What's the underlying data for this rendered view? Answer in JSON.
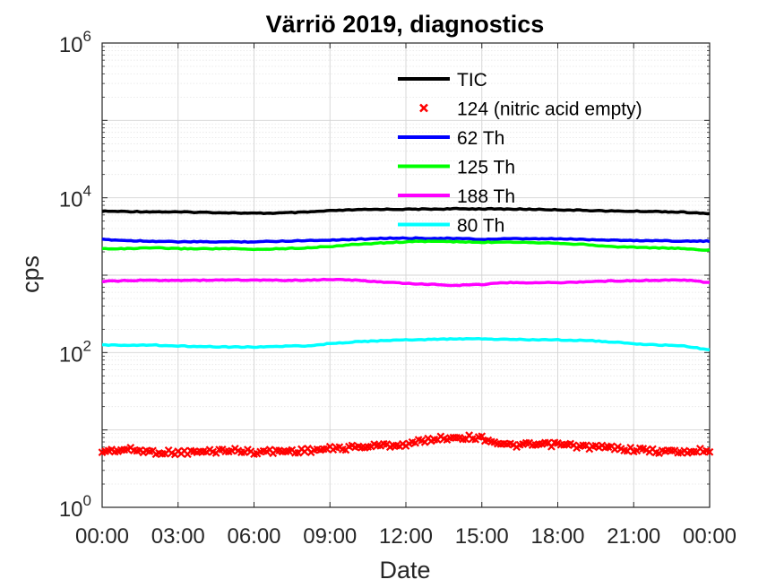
{
  "chart_data": {
    "type": "line",
    "title": "Värriö 2019, diagnostics",
    "xlabel": "Date",
    "ylabel": "cps",
    "yscale": "log",
    "ylim": [
      1,
      1000000
    ],
    "y_ticks": [
      {
        "base": "10",
        "exp": "0",
        "value": 1
      },
      {
        "base": "10",
        "exp": "2",
        "value": 100
      },
      {
        "base": "10",
        "exp": "4",
        "value": 10000
      },
      {
        "base": "10",
        "exp": "6",
        "value": 1000000
      }
    ],
    "xlim": [
      0,
      24
    ],
    "x_tick_labels": [
      "00:00",
      "03:00",
      "06:00",
      "09:00",
      "12:00",
      "15:00",
      "18:00",
      "21:00",
      "00:00"
    ],
    "x_tick_hours": [
      0,
      3,
      6,
      9,
      12,
      15,
      18,
      21,
      24
    ],
    "grid": true,
    "legend_position": "top-center",
    "x_hours": [
      0,
      1,
      2,
      3,
      4,
      5,
      6,
      7,
      8,
      9,
      10,
      11,
      12,
      13,
      14,
      15,
      16,
      17,
      18,
      19,
      20,
      21,
      22,
      23,
      24
    ],
    "series": [
      {
        "name": "TIC",
        "color": "#000000",
        "style": "line",
        "values": [
          6700,
          6650,
          6600,
          6550,
          6500,
          6400,
          6300,
          6350,
          6500,
          6800,
          7000,
          7100,
          7100,
          7150,
          7200,
          7200,
          7150,
          7100,
          7000,
          6900,
          6750,
          6700,
          6650,
          6500,
          6200
        ]
      },
      {
        "name": "124 (nitric acid empty)",
        "color": "#ff0000",
        "style": "marker",
        "values": [
          5.3,
          5.6,
          5.2,
          5.1,
          5.2,
          5.5,
          5.2,
          5.3,
          5.4,
          5.7,
          6.0,
          6.3,
          6.5,
          7.6,
          8.1,
          7.9,
          6.3,
          6.4,
          6.5,
          6.1,
          5.9,
          5.6,
          5.3,
          5.2,
          5.5
        ]
      },
      {
        "name": "62 Th",
        "color": "#0000ff",
        "style": "line",
        "values": [
          2900,
          2800,
          2750,
          2700,
          2700,
          2700,
          2700,
          2750,
          2800,
          2850,
          2900,
          3000,
          3000,
          3000,
          2980,
          2900,
          2950,
          2950,
          2950,
          2900,
          2850,
          2800,
          2800,
          2750,
          2750
        ]
      },
      {
        "name": "125 Th",
        "color": "#00ff00",
        "style": "line",
        "values": [
          2200,
          2200,
          2250,
          2200,
          2200,
          2200,
          2150,
          2200,
          2250,
          2350,
          2500,
          2600,
          2700,
          2750,
          2700,
          2650,
          2700,
          2650,
          2600,
          2500,
          2350,
          2300,
          2250,
          2200,
          2100
        ]
      },
      {
        "name": "188 Th",
        "color": "#ff00ff",
        "style": "line",
        "values": [
          830,
          850,
          860,
          860,
          860,
          870,
          860,
          860,
          860,
          880,
          860,
          820,
          780,
          760,
          740,
          760,
          800,
          800,
          800,
          820,
          840,
          850,
          860,
          870,
          800
        ]
      },
      {
        "name": "80 Th",
        "color": "#00ffff",
        "style": "line",
        "values": [
          125,
          125,
          125,
          122,
          120,
          118,
          118,
          120,
          122,
          130,
          138,
          142,
          146,
          148,
          150,
          150,
          148,
          146,
          146,
          144,
          138,
          130,
          125,
          122,
          108
        ]
      }
    ]
  }
}
